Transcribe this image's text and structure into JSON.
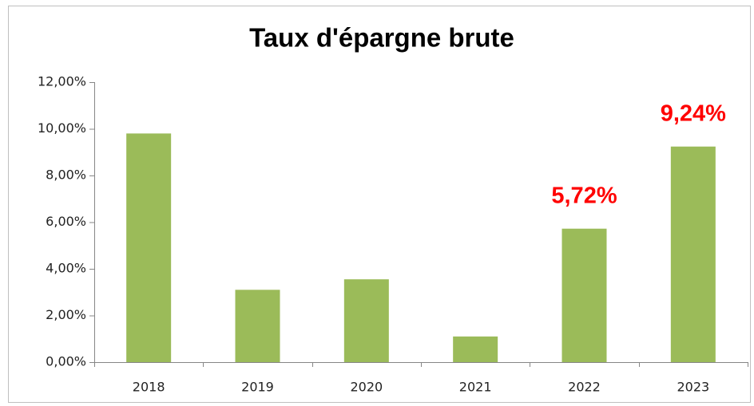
{
  "chart_data": {
    "type": "bar",
    "title": "Taux d'épargne brute",
    "categories": [
      "2018",
      "2019",
      "2020",
      "2021",
      "2022",
      "2023"
    ],
    "values": [
      9.8,
      3.1,
      3.55,
      1.1,
      5.72,
      9.24
    ],
    "value_labels": [
      null,
      null,
      null,
      null,
      "5,72%",
      "9,24%"
    ],
    "color": "#9bbb59",
    "label_color": "#ff0000",
    "ylim": [
      0,
      12
    ],
    "yticks": [
      {
        "value": 0,
        "label": "0,00%"
      },
      {
        "value": 2,
        "label": "2,00%"
      },
      {
        "value": 4,
        "label": "4,00%"
      },
      {
        "value": 6,
        "label": "6,00%"
      },
      {
        "value": 8,
        "label": "8,00%"
      },
      {
        "value": 10,
        "label": "10,00%"
      },
      {
        "value": 12,
        "label": "12,00%"
      }
    ],
    "grid": false
  }
}
